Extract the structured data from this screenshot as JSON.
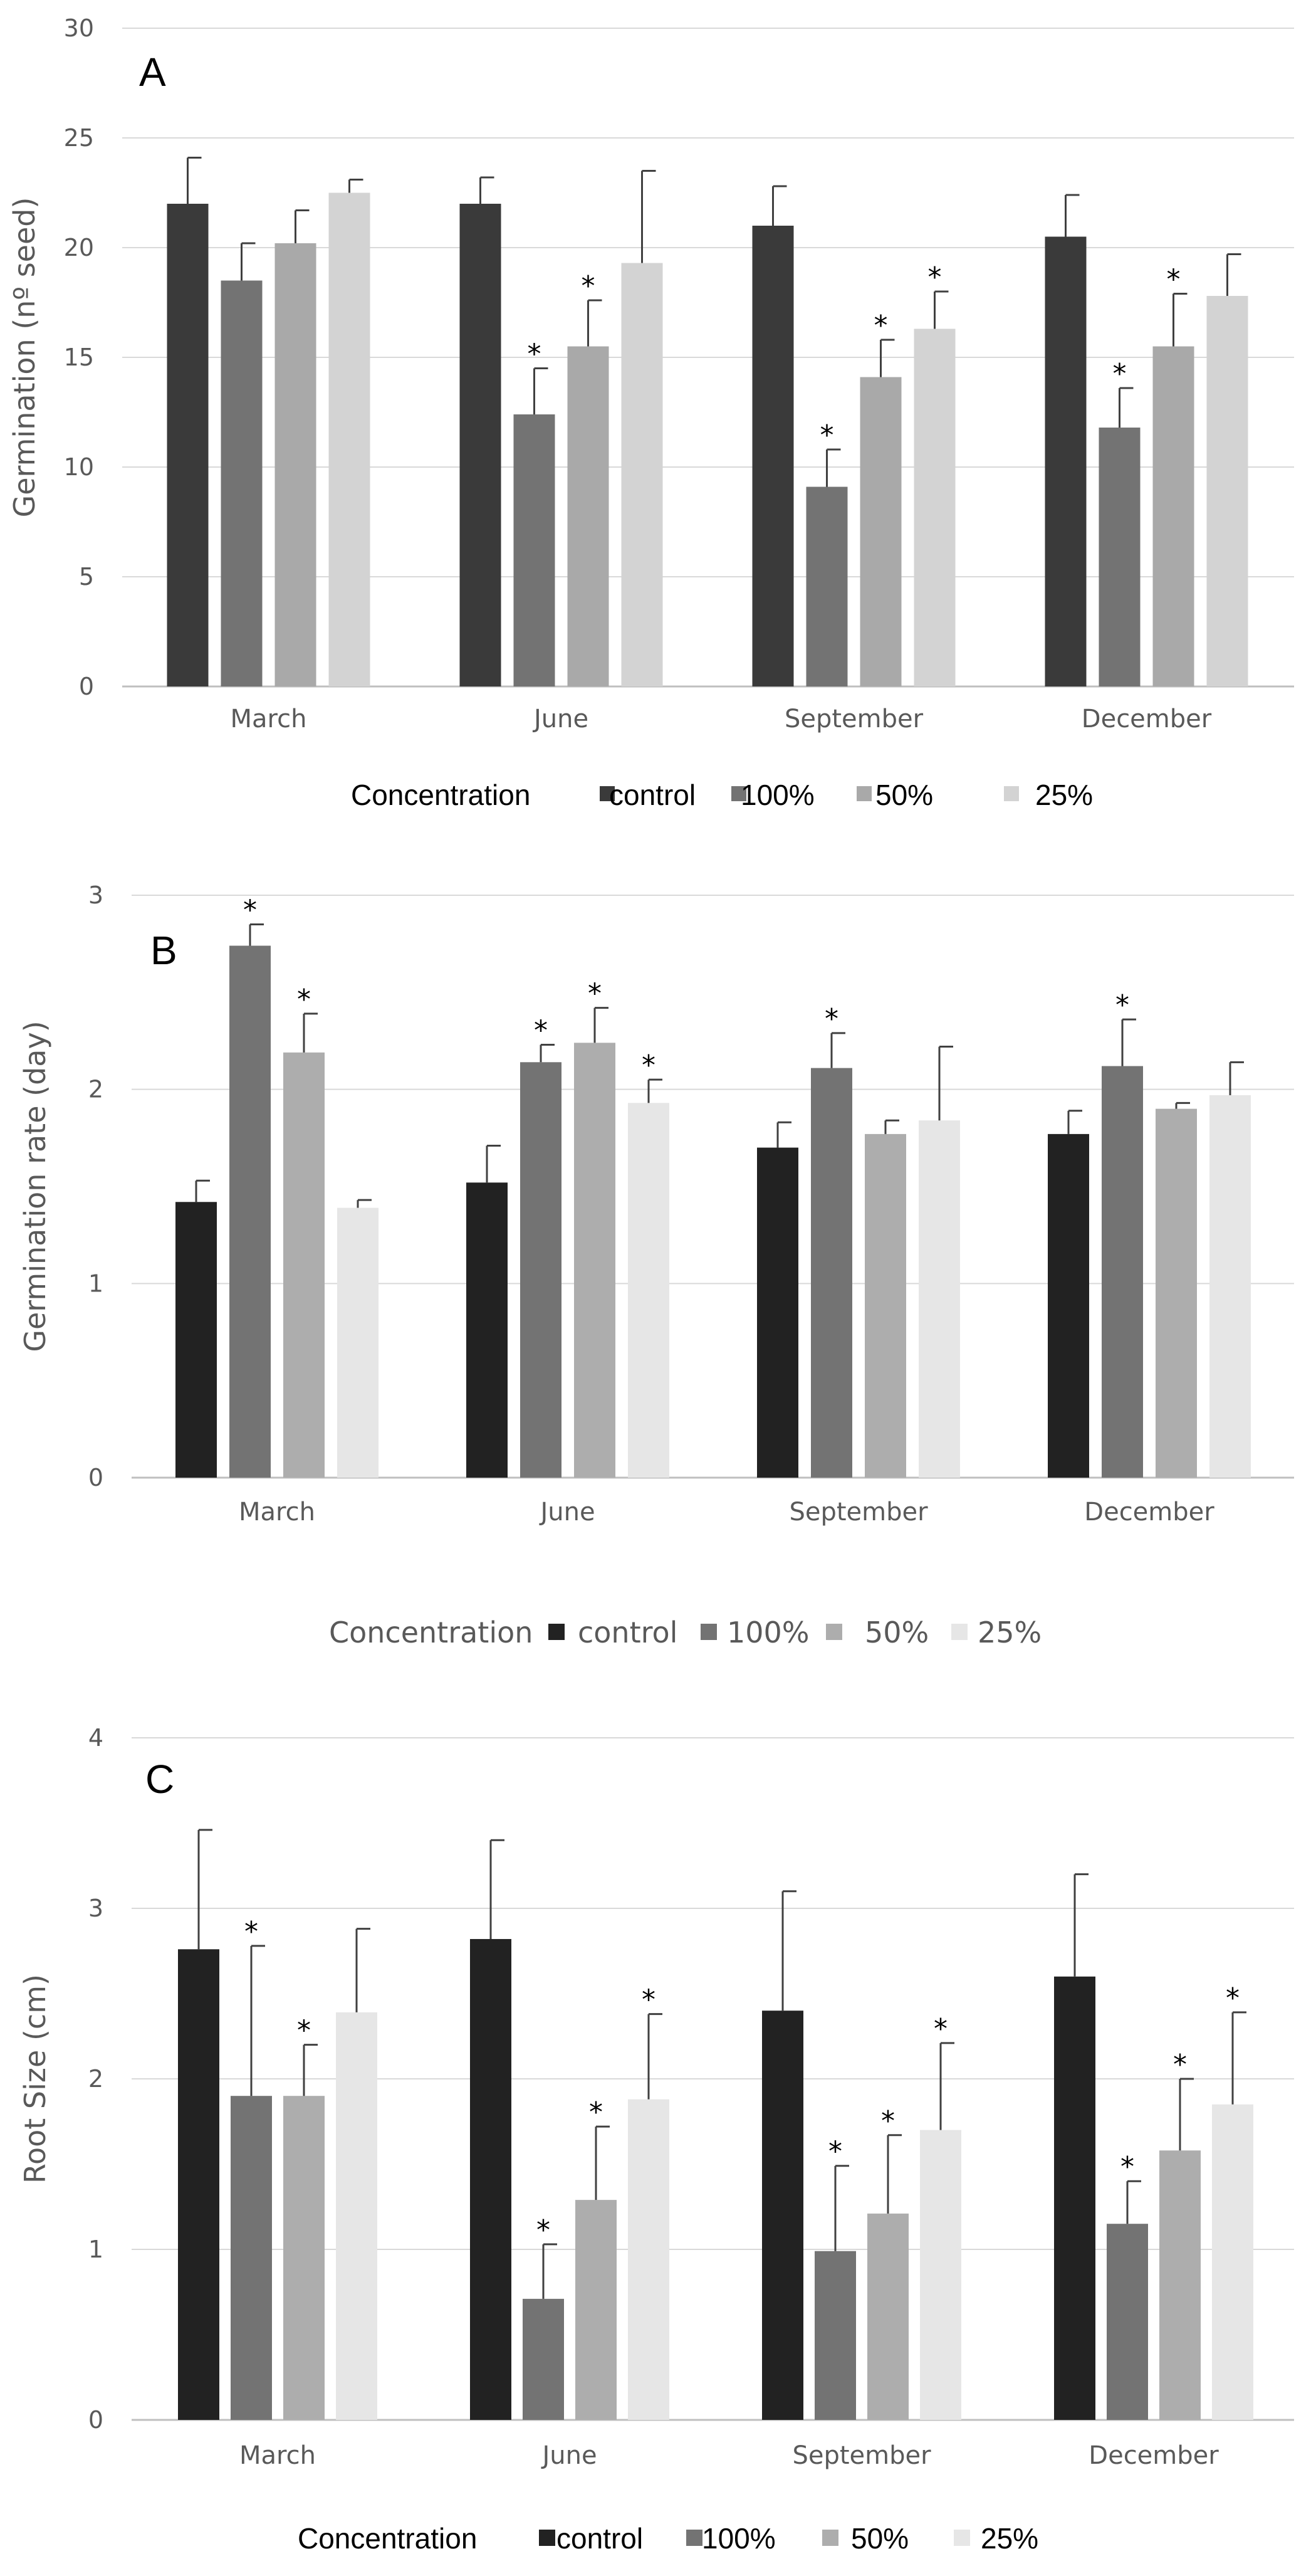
{
  "chart_data": [
    {
      "type": "bar",
      "panel": "A",
      "title": "",
      "xlabel": "",
      "ylabel": "Germination (nº seed)",
      "ylim": [
        0,
        30
      ],
      "yticks": [
        0,
        5,
        10,
        15,
        20,
        25,
        30
      ],
      "categories": [
        "March",
        "June",
        "September",
        "December"
      ],
      "legend_title": "Concentration",
      "legend_position": "bottom",
      "series": [
        {
          "name": "control",
          "color": "#3a3a3a",
          "values": [
            22,
            22,
            21,
            20.5
          ],
          "errors": [
            2.1,
            1.2,
            1.8,
            1.9
          ],
          "significant": [
            false,
            false,
            false,
            false
          ]
        },
        {
          "name": "100%",
          "color": "#737373",
          "values": [
            18.5,
            12.4,
            9.1,
            11.8
          ],
          "errors": [
            1.7,
            2.1,
            1.7,
            1.8
          ],
          "significant": [
            false,
            true,
            true,
            true
          ]
        },
        {
          "name": "50%",
          "color": "#a9a9a9",
          "values": [
            20.2,
            15.5,
            14.1,
            15.5
          ],
          "errors": [
            1.5,
            2.1,
            1.7,
            2.4
          ],
          "significant": [
            false,
            true,
            true,
            true
          ]
        },
        {
          "name": "25%",
          "color": "#d3d3d3",
          "values": [
            22.5,
            19.3,
            16.3,
            17.8
          ],
          "errors": [
            0.6,
            4.2,
            1.7,
            1.9
          ],
          "significant": [
            false,
            false,
            true,
            false
          ]
        }
      ]
    },
    {
      "type": "bar",
      "panel": "B",
      "title": "",
      "xlabel": "",
      "ylabel": "Germination rate (day)",
      "ylim": [
        0,
        3
      ],
      "yticks": [
        0,
        1,
        2,
        3
      ],
      "categories": [
        "March",
        "June",
        "September",
        "December"
      ],
      "legend_title": "Concentration",
      "legend_position": "bottom",
      "series": [
        {
          "name": "control",
          "color": "#222222",
          "values": [
            1.42,
            1.52,
            1.7,
            1.77
          ],
          "errors": [
            0.11,
            0.19,
            0.13,
            0.12
          ],
          "significant": [
            false,
            false,
            false,
            false
          ]
        },
        {
          "name": "100%",
          "color": "#737373",
          "values": [
            2.74,
            2.14,
            2.11,
            2.12
          ],
          "errors": [
            0.11,
            0.09,
            0.18,
            0.24
          ],
          "significant": [
            true,
            true,
            true,
            true
          ]
        },
        {
          "name": "50%",
          "color": "#adadad",
          "values": [
            2.19,
            2.24,
            1.77,
            1.9
          ],
          "errors": [
            0.2,
            0.18,
            0.07,
            0.03
          ],
          "significant": [
            true,
            true,
            false,
            false
          ]
        },
        {
          "name": "25%",
          "color": "#e6e6e6",
          "values": [
            1.39,
            1.93,
            1.84,
            1.97
          ],
          "errors": [
            0.04,
            0.12,
            0.38,
            0.17
          ],
          "significant": [
            false,
            true,
            false,
            false
          ]
        }
      ]
    },
    {
      "type": "bar",
      "panel": "C",
      "title": "",
      "xlabel": "",
      "ylabel": "Root Size (cm)",
      "ylim": [
        0,
        4
      ],
      "yticks": [
        0,
        1,
        2,
        3,
        4
      ],
      "categories": [
        "March",
        "June",
        "September",
        "December"
      ],
      "legend_title": "Concentration",
      "legend_position": "bottom",
      "series": [
        {
          "name": "control",
          "color": "#222222",
          "values": [
            2.76,
            2.82,
            2.4,
            2.6
          ],
          "errors": [
            0.7,
            0.58,
            0.7,
            0.6
          ],
          "significant": [
            false,
            false,
            false,
            false
          ]
        },
        {
          "name": "100%",
          "color": "#737373",
          "values": [
            1.9,
            0.71,
            0.99,
            1.15
          ],
          "errors": [
            0.88,
            0.32,
            0.5,
            0.25
          ],
          "significant": [
            true,
            true,
            true,
            true
          ]
        },
        {
          "name": "50%",
          "color": "#adadad",
          "values": [
            1.9,
            1.29,
            1.21,
            1.58
          ],
          "errors": [
            0.3,
            0.43,
            0.46,
            0.42
          ],
          "significant": [
            true,
            true,
            true,
            true
          ]
        },
        {
          "name": "25%",
          "color": "#e6e6e6",
          "values": [
            2.39,
            1.88,
            1.7,
            1.85
          ],
          "errors": [
            0.49,
            0.5,
            0.51,
            0.54
          ],
          "significant": [
            false,
            true,
            true,
            true
          ]
        }
      ]
    }
  ],
  "significance_marker": "*"
}
